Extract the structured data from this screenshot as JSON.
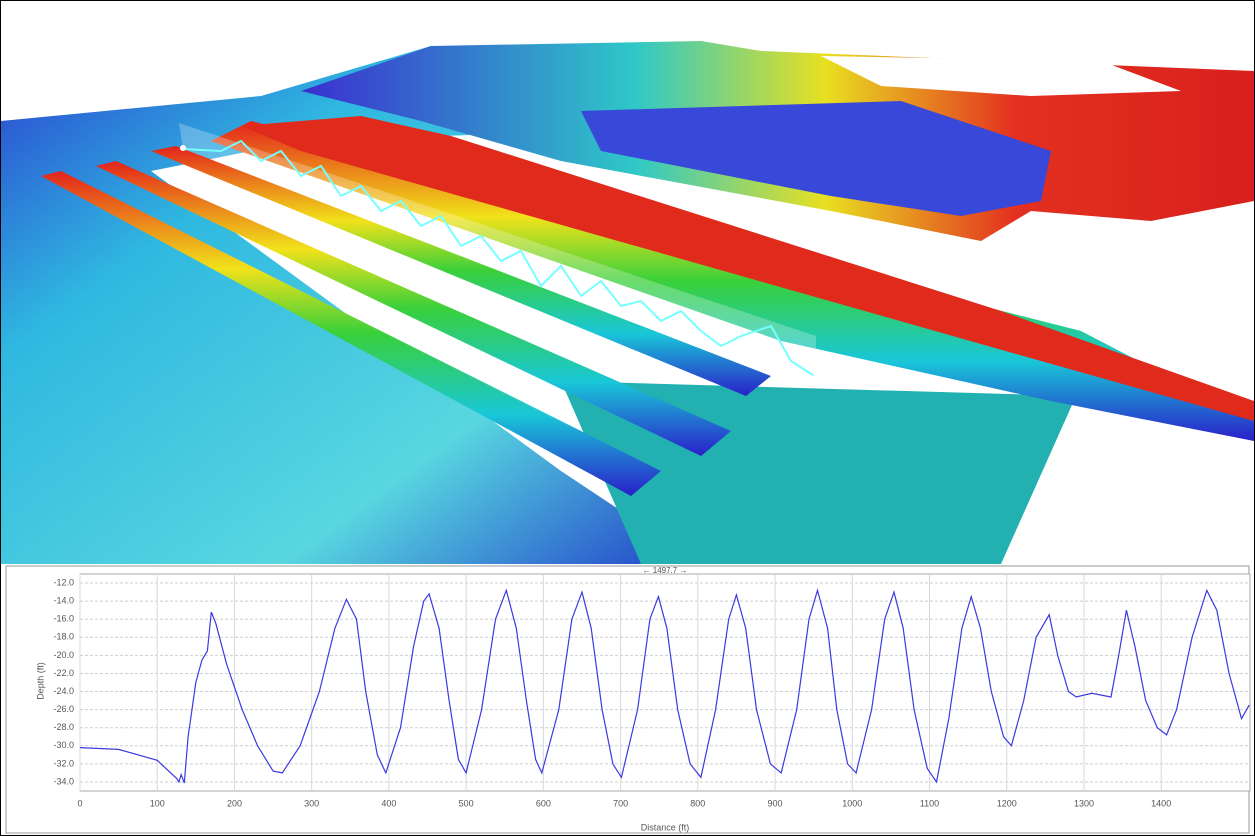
{
  "chart_data": {
    "type": "line",
    "annotation": "← 1497.7 →",
    "x_label": "Distance (ft)",
    "y_label": "Depth (ft)",
    "xlim": [
      0,
      1515
    ],
    "ylim": [
      -35,
      -11
    ],
    "xticks": [
      0,
      100,
      200,
      300,
      400,
      500,
      600,
      700,
      800,
      900,
      1000,
      1100,
      1200,
      1300,
      1400
    ],
    "yticks": [
      {
        "value": -12,
        "label": "-12.0"
      },
      {
        "value": -14,
        "label": "-14.0"
      },
      {
        "value": -16,
        "label": "-16.0"
      },
      {
        "value": -18,
        "label": "-18.0"
      },
      {
        "value": -20,
        "label": "-20.0"
      },
      {
        "value": -22,
        "label": "-22.0"
      },
      {
        "value": -24,
        "label": "-24.0"
      },
      {
        "value": -26,
        "label": "-26.0"
      },
      {
        "value": -28,
        "label": "-28.0"
      },
      {
        "value": -30,
        "label": "-30.0"
      },
      {
        "value": -32,
        "label": "-32.0"
      },
      {
        "value": -34,
        "label": "-34.0"
      }
    ],
    "grid": true,
    "color": "#3a3ae0",
    "x": [
      0,
      50,
      100,
      125,
      128,
      131,
      135,
      140,
      145,
      150,
      158,
      165,
      170,
      176,
      190,
      210,
      230,
      250,
      262,
      285,
      310,
      330,
      345,
      358,
      370,
      385,
      396,
      415,
      432,
      445,
      452,
      465,
      478,
      490,
      500,
      520,
      538,
      552,
      565,
      578,
      590,
      598,
      620,
      637,
      650,
      662,
      676,
      690,
      701,
      722,
      738,
      749,
      760,
      774,
      790,
      804,
      823,
      840,
      850,
      862,
      876,
      894,
      908,
      928,
      944,
      955,
      968,
      980,
      994,
      1005,
      1025,
      1042,
      1054,
      1066,
      1080,
      1097,
      1109,
      1125,
      1142,
      1154,
      1166,
      1180,
      1196,
      1206,
      1222,
      1238,
      1255,
      1266,
      1280,
      1290,
      1310,
      1335,
      1345,
      1355,
      1366,
      1380,
      1395,
      1407,
      1420,
      1440,
      1459,
      1472,
      1488,
      1504,
      1514
    ],
    "values": [
      -30.2,
      -30.4,
      -31.6,
      -33.6,
      -34,
      -33.2,
      -34.1,
      -29,
      -26,
      -23,
      -20.5,
      -19.5,
      -15.2,
      -16.5,
      -21,
      -26,
      -30,
      -32.8,
      -33,
      -30,
      -24,
      -17,
      -13.8,
      -16,
      -24,
      -31,
      -33,
      -28,
      -19,
      -14,
      -13.2,
      -17,
      -25,
      -31.5,
      -33,
      -26,
      -16,
      -12.8,
      -17,
      -25,
      -31.5,
      -33,
      -26,
      -16,
      -13,
      -17,
      -26,
      -32,
      -33.5,
      -26,
      -16,
      -13.5,
      -17,
      -26,
      -32,
      -33.5,
      -26,
      -16,
      -13.3,
      -17,
      -26,
      -32,
      -33,
      -26,
      -16,
      -12.8,
      -17,
      -26,
      -32,
      -33,
      -26,
      -16,
      -13,
      -17,
      -26,
      -32.5,
      -34,
      -27,
      -17,
      -13.5,
      -17,
      -24,
      -29,
      -30,
      -25,
      -18,
      -15.5,
      -20,
      -24,
      -24.6,
      -24.2,
      -24.6,
      -20,
      -15,
      -19,
      -25,
      -28,
      -28.8,
      -26,
      -18,
      -12.8,
      -15,
      -22,
      -27,
      -25.5
    ]
  }
}
